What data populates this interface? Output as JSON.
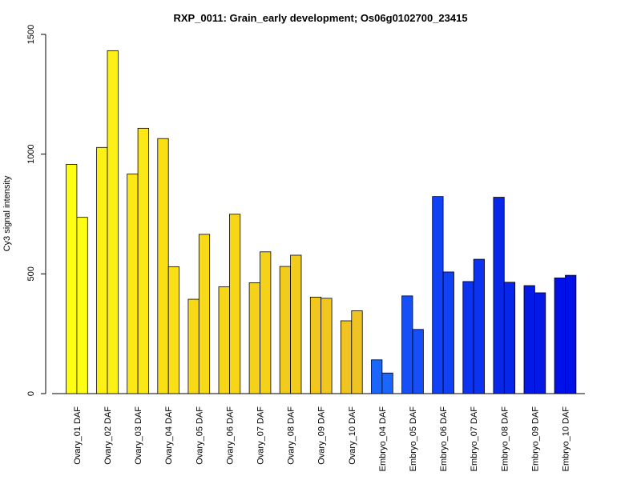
{
  "chart_data": {
    "type": "bar",
    "title": "RXP_0011: Grain_early development; Os06g0102700_23415",
    "xlabel": "",
    "ylabel": "Cy3 signal intensity",
    "ylim": [
      0,
      1500
    ],
    "yticks": [
      0,
      500,
      1000,
      1500
    ],
    "grid": false,
    "legend": "none",
    "categories": [
      "Ovary_01 DAF",
      "Ovary_02 DAF",
      "Ovary_03 DAF",
      "Ovary_04 DAF",
      "Ovary_05 DAF",
      "Ovary_06 DAF",
      "Ovary_07 DAF",
      "Ovary_08 DAF",
      "Ovary_09 DAF",
      "Ovary_10 DAF",
      "Embryo_04 DAF",
      "Embryo_05 DAF",
      "Embryo_06 DAF",
      "Embryo_07 DAF",
      "Embryo_08 DAF",
      "Embryo_09 DAF",
      "Embryo_10 DAF"
    ],
    "series": [
      {
        "values": [
          957,
          1028,
          917,
          1065,
          394,
          446,
          463,
          531,
          403,
          304,
          141,
          408,
          823,
          468,
          820,
          451,
          483
        ]
      },
      {
        "values": [
          736,
          1432,
          1108,
          530,
          665,
          749,
          592,
          578,
          398,
          346,
          86,
          268,
          508,
          561,
          465,
          421,
          494
        ]
      }
    ],
    "colors": [
      "#ffff14",
      "#fdf014",
      "#fbe815",
      "#f9e015",
      "#f7da15",
      "#f6d617",
      "#f4d21a",
      "#f2cc1c",
      "#f0c61f",
      "#eec322",
      "#1a66ff",
      "#164ff8",
      "#1141f4",
      "#0c33f0",
      "#0826ea",
      "#0418e6",
      "#0010e8"
    ]
  }
}
